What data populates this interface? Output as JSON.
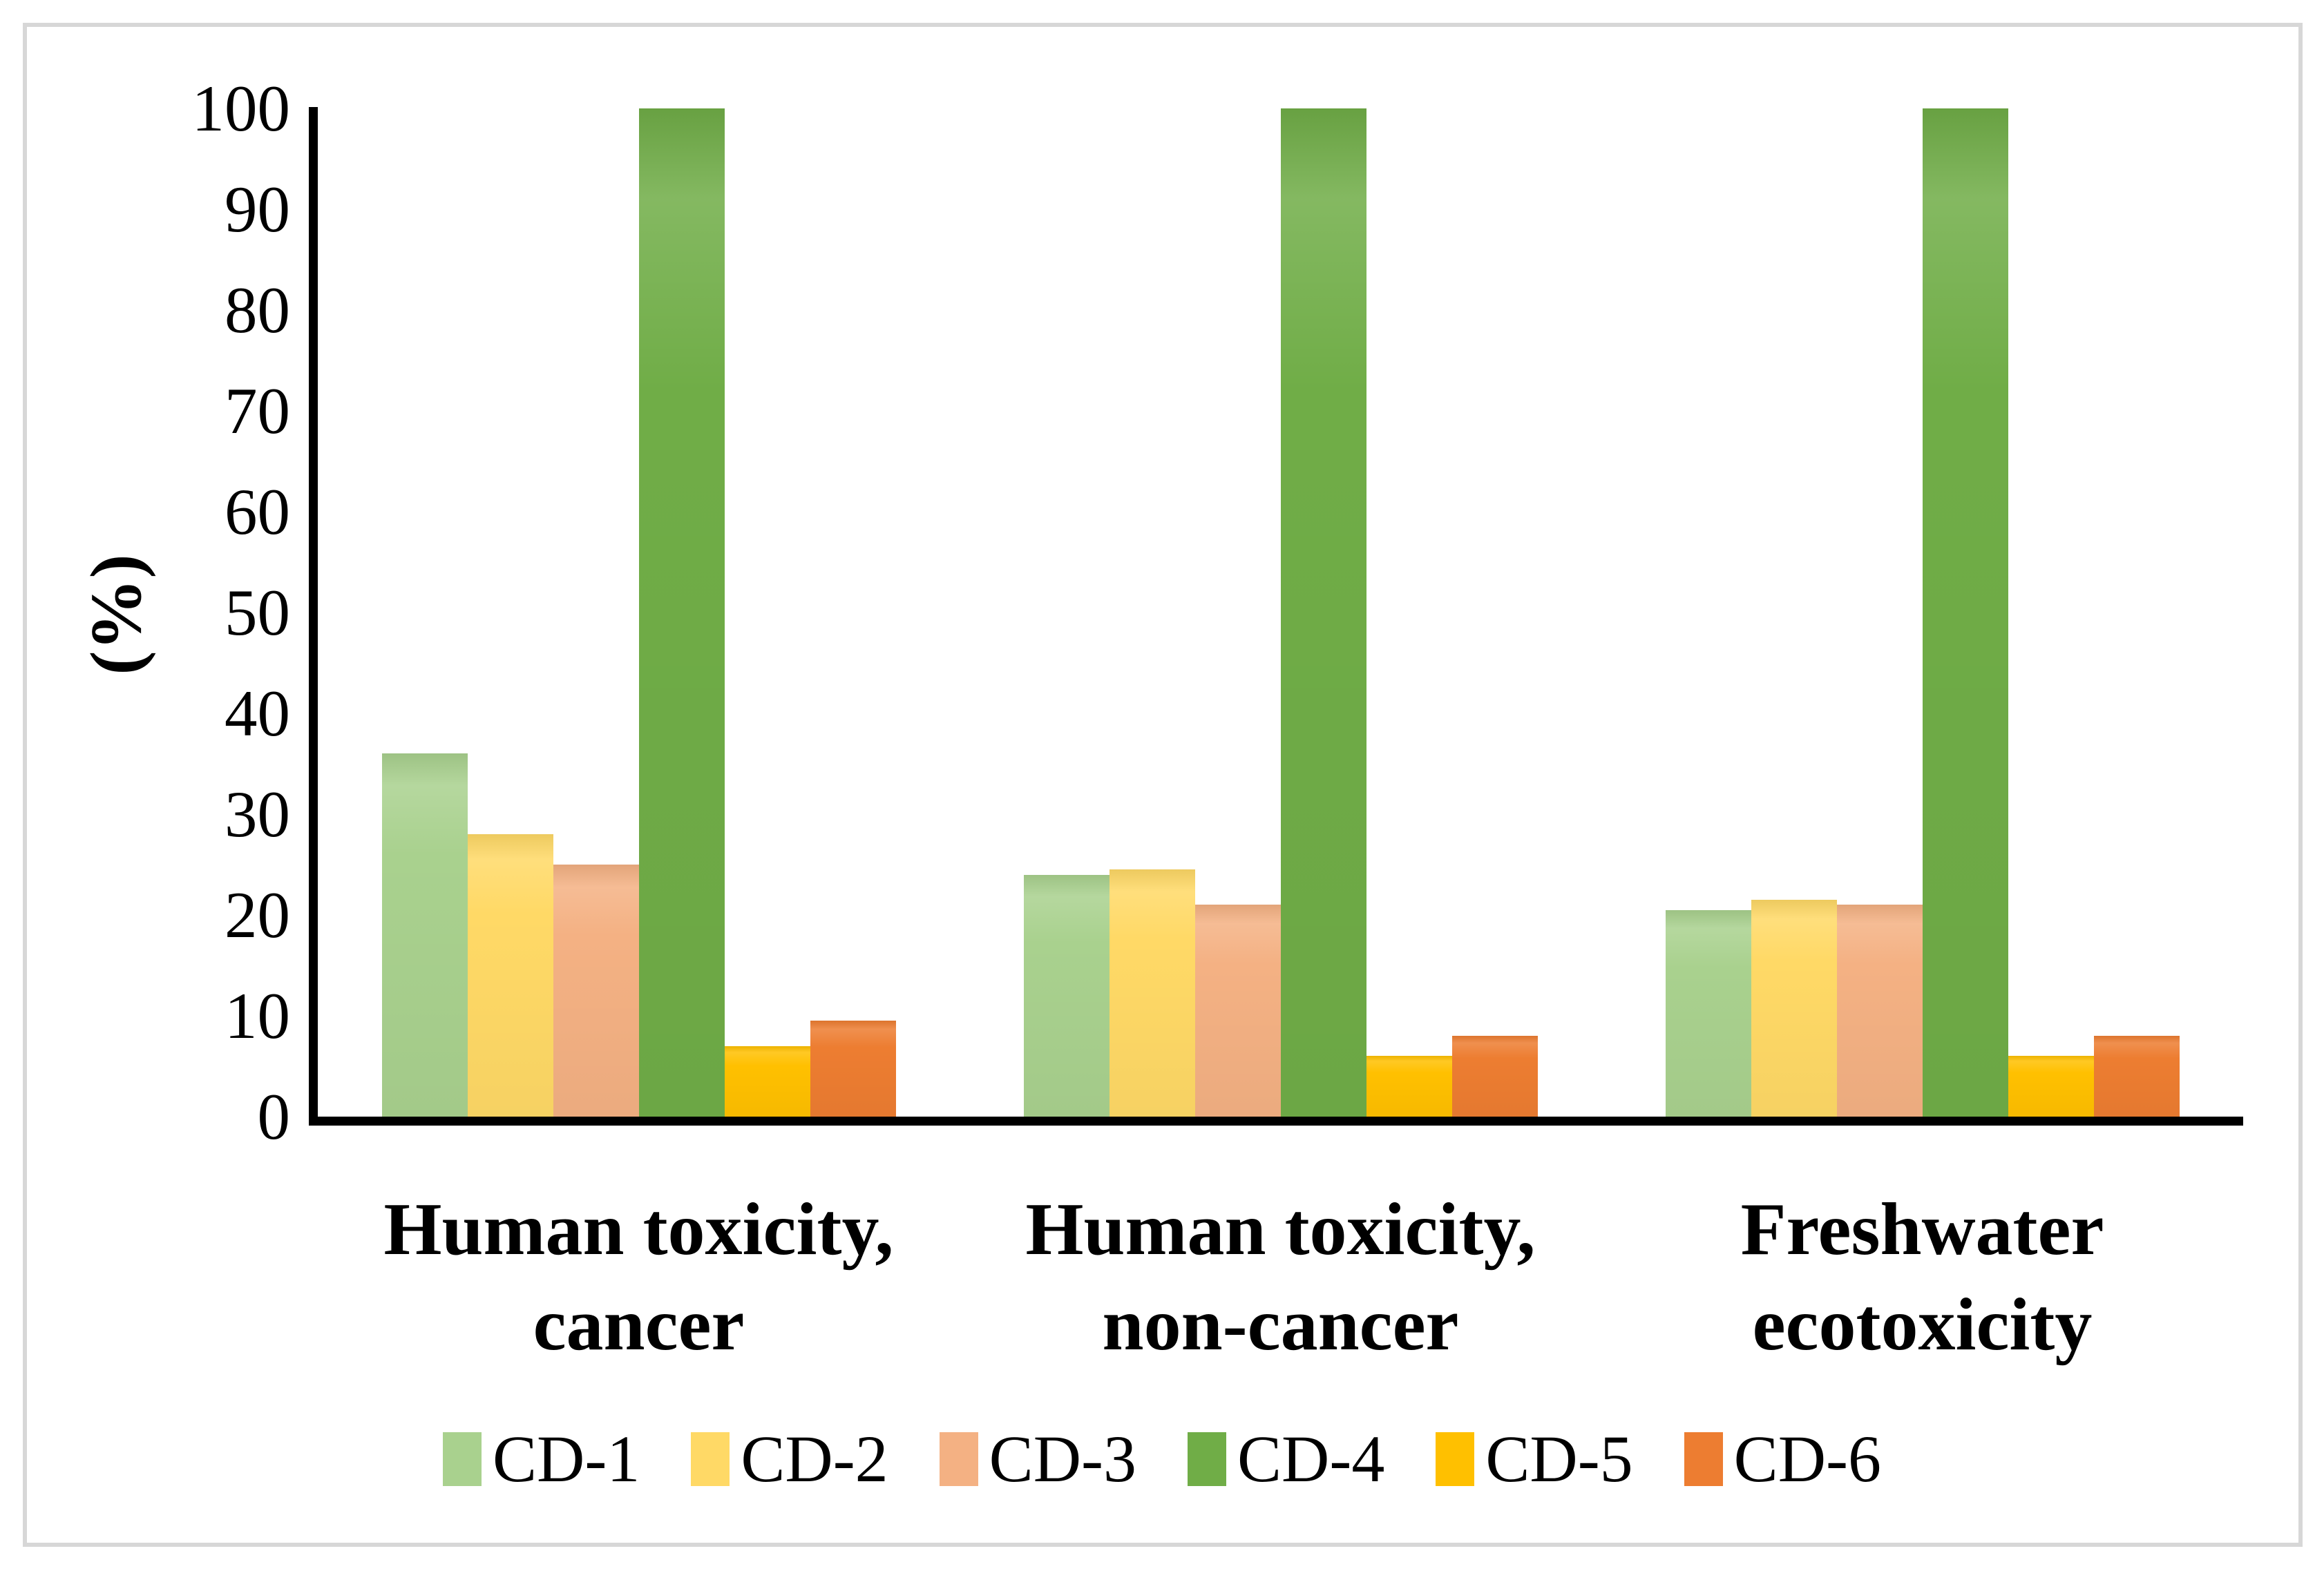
{
  "chart_data": {
    "type": "bar",
    "title": "",
    "ylabel": "(%)",
    "xlabel": "",
    "ylim": [
      0,
      100
    ],
    "yticks": [
      0,
      10,
      20,
      30,
      40,
      50,
      60,
      70,
      80,
      90,
      100
    ],
    "grid": false,
    "legend_position": "bottom",
    "axis_color": "#000000",
    "frame_color": "#d7d7d7",
    "categories": [
      "Human toxicity,\ncancer",
      "Human toxicity,\nnon-cancer",
      "Freshwater\necotoxicity"
    ],
    "series": [
      {
        "name": "CD-1",
        "color": "#A9D18E",
        "values": [
          36,
          24,
          20.5
        ]
      },
      {
        "name": "CD-2",
        "color": "#FFD966",
        "values": [
          28,
          24.5,
          21.5
        ]
      },
      {
        "name": "CD-3",
        "color": "#F4B183",
        "values": [
          25,
          21,
          21
        ]
      },
      {
        "name": "CD-4",
        "color": "#70AD47",
        "values": [
          100,
          100,
          100
        ]
      },
      {
        "name": "CD-5",
        "color": "#FFC000",
        "values": [
          7,
          6,
          6
        ]
      },
      {
        "name": "CD-6",
        "color": "#ED7D31",
        "values": [
          9.5,
          8,
          8
        ]
      }
    ]
  }
}
